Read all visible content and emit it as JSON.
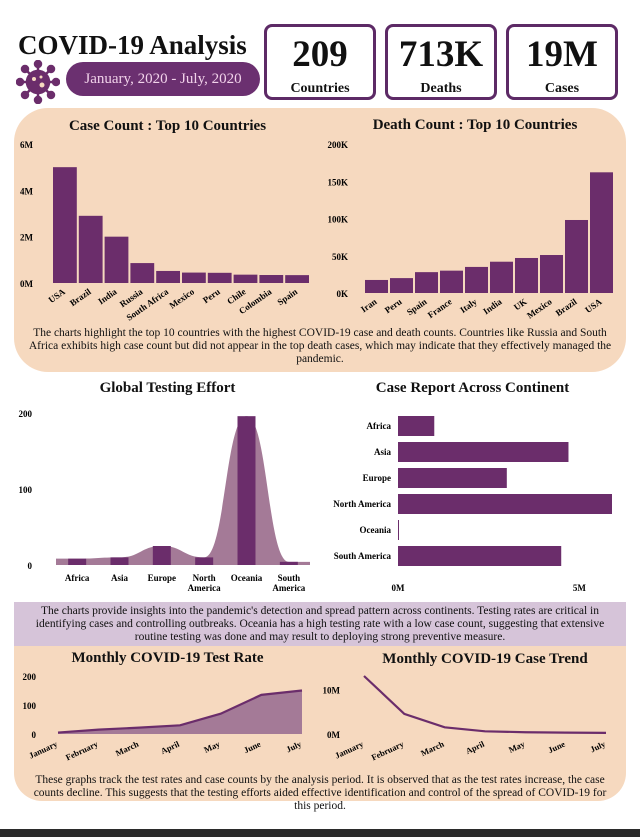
{
  "header": {
    "title": "COVID-19 Analysis",
    "date_range": "January, 2020 - July, 2020",
    "kpis": [
      {
        "value": "209",
        "label": "Countries"
      },
      {
        "value": "713K",
        "label": "Deaths"
      },
      {
        "value": "19M",
        "label": "Cases"
      }
    ]
  },
  "colors": {
    "bar": "#6b2d6b",
    "panel": "#f6d9bf",
    "band": "#d6c4d9",
    "area": "#a47a97"
  },
  "notes": {
    "top": "The charts highlight the top 10 countries with the highest COVID-19 case and death counts. Countries like Russia and South Africa exhibits high case count but did not appear in the top death cases, which may indicate that they effectively managed the pandemic.",
    "middle": "The charts provide insights into the pandemic's detection and spread pattern across continents. Testing rates are critical in identifying cases and controlling outbreaks. Oceania has a high testing rate with a low case count, suggesting that extensive routine testing was done and may result to deploying strong preventive measure.",
    "bottom": "These graphs track the test rates and case counts by the analysis period. It is observed that as the test rates increase, the case counts decline. This suggests that the testing efforts aided effective identification and control of the spread of COVID-19 for this period."
  },
  "chart_data": [
    {
      "type": "bar",
      "title": "Case Count : Top 10 Countries",
      "categories": [
        "USA",
        "Brazil",
        "India",
        "Russia",
        "South Africa",
        "Mexico",
        "Peru",
        "Chile",
        "Colombia",
        "Spain"
      ],
      "values": [
        5000000,
        2900000,
        2000000,
        860000,
        520000,
        450000,
        440000,
        360000,
        345000,
        340000
      ],
      "yticks": [
        "0M",
        "2M",
        "4M",
        "6M"
      ],
      "ylim": [
        0,
        6000000
      ]
    },
    {
      "type": "bar",
      "title": "Death Count : Top 10 Countries",
      "categories": [
        "Iran",
        "Peru",
        "Spain",
        "France",
        "Italy",
        "India",
        "UK",
        "Mexico",
        "Brazil",
        "USA"
      ],
      "values": [
        17500,
        20000,
        28000,
        30000,
        35000,
        42000,
        47000,
        51000,
        98000,
        162000
      ],
      "yticks": [
        "0K",
        "50K",
        "100K",
        "150K",
        "200K"
      ],
      "ylim": [
        0,
        200000
      ]
    },
    {
      "type": "area",
      "title": "Global Testing Effort",
      "categories": [
        "Africa",
        "Asia",
        "Europe",
        "North America",
        "Oceania",
        "South America"
      ],
      "values": [
        10,
        12,
        30,
        12,
        235,
        5
      ],
      "yticks": [
        "0",
        "100",
        "200"
      ],
      "ylim": [
        0,
        240
      ]
    },
    {
      "type": "bar",
      "orientation": "horizontal",
      "title": "Case Report Across Continent",
      "categories": [
        "Africa",
        "Asia",
        "Europe",
        "North America",
        "Oceania",
        "South America"
      ],
      "values": [
        1000000,
        4700000,
        3000000,
        5900000,
        20000,
        4500000
      ],
      "xticks": [
        "0M",
        "5M"
      ],
      "xlim": [
        0,
        5900000
      ]
    },
    {
      "type": "area",
      "title": "Monthly COVID-19 Test Rate",
      "categories": [
        "January",
        "February",
        "March",
        "April",
        "May",
        "June",
        "July"
      ],
      "values": [
        5,
        15,
        22,
        30,
        70,
        135,
        150
      ],
      "yticks": [
        "0",
        "100",
        "200"
      ],
      "ylim": [
        0,
        200
      ]
    },
    {
      "type": "line",
      "title": "Monthly COVID-19 Case Trend",
      "categories": [
        "January",
        "February",
        "March",
        "April",
        "May",
        "June",
        "July"
      ],
      "values": [
        13000000,
        4500000,
        1500000,
        600000,
        400000,
        300000,
        250000
      ],
      "yticks": [
        "0M",
        "10M"
      ],
      "ylim": [
        0,
        13000000
      ]
    }
  ]
}
